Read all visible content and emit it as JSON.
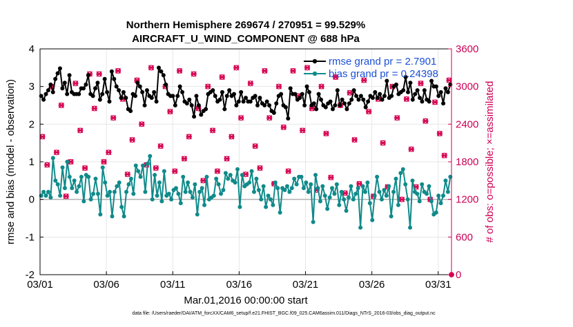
{
  "chart_data": {
    "type": "line",
    "title": "Northern Hemisphere 269674 / 270951 = 99.529%",
    "subtitle": "AIRCRAFT_U_WIND_COMPONENT @ 688 hPa",
    "xlabel": "Mar.01,2016 00:00:00 start",
    "ylabel": "rmse and bias (model - observation)",
    "y2label": "# of obs: o=possible; ×=assimilated",
    "footnote": "data file: /Users/raeder/DAI/ATM_forcXX/CAM6_setup/f.e21.FHIST_BGC.f09_025.CAM6assim.011/Diags_NTrS_2016-03/obs_diag_output.nc",
    "xlim": [
      0,
      31
    ],
    "ylim": [
      -2,
      4
    ],
    "y2lim": [
      0,
      3600
    ],
    "xticks": [
      {
        "pos": 0,
        "label": "03/01"
      },
      {
        "pos": 5,
        "label": "03/06"
      },
      {
        "pos": 10,
        "label": "03/11"
      },
      {
        "pos": 15,
        "label": "03/16"
      },
      {
        "pos": 20,
        "label": "03/21"
      },
      {
        "pos": 25,
        "label": "03/26"
      },
      {
        "pos": 30,
        "label": "03/31"
      }
    ],
    "yticks": [
      "-2",
      "-1",
      "0",
      "1",
      "2",
      "3",
      "4"
    ],
    "y2ticks": [
      "0",
      "600",
      "1200",
      "1800",
      "2400",
      "3000",
      "3600"
    ],
    "zero_line": 0,
    "series": [
      {
        "name": "rmse grand pr = 2.7901",
        "color": "#000000",
        "marker": "star",
        "values": [
          2.75,
          2.65,
          2.8,
          2.9,
          3.05,
          2.85,
          3.2,
          3.35,
          3.48,
          2.95,
          3.1,
          2.8,
          3.3,
          2.85,
          2.8,
          2.8,
          2.8,
          2.95,
          2.95,
          3.05,
          3.3,
          2.8,
          2.75,
          2.95,
          3.1,
          2.65,
          2.8,
          3.2,
          2.85,
          2.6,
          3.4,
          3.2,
          3.0,
          2.9,
          2.7,
          2.85,
          2.7,
          2.4,
          2.35,
          2.8,
          2.75,
          3.1,
          3.0,
          2.85,
          2.5,
          2.9,
          2.75,
          2.7,
          2.85,
          2.6,
          3.5,
          3.4,
          3.3,
          3.05,
          2.8,
          2.75,
          2.75,
          2.5,
          2.75,
          3.0,
          2.85,
          2.6,
          2.55,
          2.65,
          2.5,
          2.2,
          2.75,
          2.5,
          2.25,
          2.35,
          2.4,
          2.8,
          2.85,
          2.9,
          2.75,
          2.6,
          2.65,
          2.85,
          2.4,
          2.75,
          2.9,
          2.75,
          2.8,
          2.5,
          2.6,
          2.85,
          2.6,
          2.7,
          2.6,
          2.6,
          2.7,
          2.75,
          2.5,
          2.7,
          2.55,
          2.5,
          2.6,
          2.5,
          2.35,
          2.3,
          2.55,
          2.75,
          2.8,
          2.5,
          2.45,
          2.15,
          2.95,
          2.8,
          2.8,
          2.65,
          2.7,
          2.8,
          2.5,
          3.0,
          2.85,
          2.5,
          2.55,
          2.4,
          2.8,
          2.65,
          2.5,
          2.45,
          2.55,
          2.6,
          2.4,
          2.5,
          2.9,
          2.5,
          2.65,
          2.55,
          2.4,
          2.55,
          2.65,
          2.9,
          2.75,
          2.65,
          2.75,
          2.65,
          2.45,
          2.6,
          2.75,
          2.7,
          2.85,
          2.7,
          2.8,
          2.65,
          2.75,
          3.15,
          2.7,
          2.75,
          3.0,
          3.05,
          2.8,
          2.85,
          2.9,
          3.25,
          2.85,
          3.1,
          2.65,
          2.8,
          2.9,
          2.7,
          2.6,
          2.9,
          2.65,
          2.6,
          3.15,
          3.0,
          3.0,
          2.75,
          2.85,
          2.55,
          2.95,
          2.85,
          3.05
        ]
      },
      {
        "name": "bias grand pr = 0.24398",
        "color": "#108a8a",
        "marker": "dot",
        "values": [
          0.1,
          0.2,
          0.1,
          0.2,
          0.05,
          1.1,
          0.5,
          0.4,
          0.1,
          0.85,
          0.3,
          1.0,
          0.6,
          0.3,
          0.5,
          0.2,
          0.35,
          0.6,
          -0.05,
          0.65,
          0.6,
          0.0,
          0.15,
          0.55,
          0.15,
          -0.4,
          0.85,
          0.45,
          0.1,
          0.2,
          -0.45,
          0.2,
          0.35,
          0.45,
          -0.2,
          -0.45,
          0.2,
          0.4,
          0.55,
          0.15,
          0.9,
          0.75,
          0.6,
          0.9,
          0.2,
          0.95,
          1.15,
          0.0,
          0.65,
          0.1,
          0.45,
          -0.05,
          0.75,
          0.1,
          0.15,
          0.0,
          0.25,
          0.3,
          0.15,
          -0.1,
          0.6,
          0.2,
          0.45,
          0.2,
          0.05,
          0.4,
          -0.4,
          0.2,
          0.3,
          -0.15,
          0.6,
          0.0,
          0.05,
          0.1,
          0.55,
          0.4,
          0.15,
          0.25,
          0.7,
          0.55,
          0.65,
          0.5,
          0.45,
          0.8,
          -0.2,
          0.65,
          0.35,
          0.4,
          0.45,
          0.75,
          0.2,
          0.55,
          0.25,
          0.0,
          0.35,
          -0.2,
          0.1,
          0.0,
          -0.15,
          0.45,
          0.3,
          -0.35,
          0.3,
          0.25,
          0.35,
          0.2,
          0.3,
          0.55,
          0.4,
          0.6,
          0.6,
          0.3,
          0.45,
          0.2,
          0.4,
          -0.6,
          0.65,
          0.3,
          -0.05,
          0.35,
          0.1,
          -0.25,
          0.05,
          0.3,
          0.15,
          0.4,
          -0.15,
          0.2,
          0.0,
          -0.3,
          0.05,
          0.35,
          0.0,
          0.15,
          0.3,
          -0.75,
          0.35,
          0.2,
          0.45,
          -0.1,
          -0.55,
          0.1,
          0.6,
          0.2,
          0.0,
          0.25,
          0.1,
          0.35,
          -0.45,
          0.2,
          0.55,
          -0.15,
          0.7,
          0.8,
          0.4,
          0.0,
          -0.75,
          0.5,
          0.2,
          0.15,
          -0.05,
          0.4,
          0.2,
          0.15,
          0.35,
          -0.05,
          -0.4,
          -0.35,
          0.1,
          -0.1,
          0.1,
          0.5,
          0.2,
          0.6
        ]
      },
      {
        "name": "obs possible / assimilated",
        "axis": "right",
        "color": "#d6004f",
        "marker": "cross-ring",
        "values": [
          2200,
          1750,
          3000,
          1950,
          2700,
          1250,
          1800,
          3050,
          2300,
          1700,
          3200,
          2650,
          3200,
          1800,
          1950,
          2500,
          3250,
          2800,
          1600,
          2150,
          3100,
          2400,
          1750,
          3300,
          1700,
          2050,
          3000,
          2600,
          1650,
          3250,
          1850,
          2200,
          3200,
          2650,
          1500,
          3000,
          2300,
          1650,
          3150,
          1850,
          2200,
          3300,
          2500,
          1600,
          3050,
          2050,
          1700,
          3250,
          2500,
          1450,
          3000,
          2350,
          1650,
          3250,
          2850,
          2300,
          3300,
          2650,
          1350,
          3000,
          2250,
          1550,
          3150,
          2700,
          1300,
          2900,
          2150,
          1450,
          3100,
          2600,
          1250,
          2800,
          2100,
          1400,
          3000,
          2500,
          1200,
          2800,
          2000,
          1400,
          3050,
          2450,
          1200,
          2750,
          2250,
          1900,
          3100
        ]
      }
    ]
  }
}
